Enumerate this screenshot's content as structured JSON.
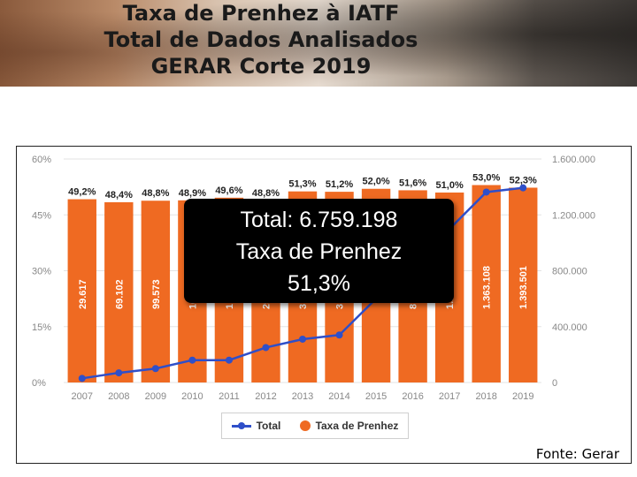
{
  "header": {
    "title_lines": [
      "Taxa de Prenhez à IATF",
      "Total de Dados Analisados",
      "GERAR Corte 2019"
    ]
  },
  "overlay": {
    "line1": "Total: 6.759.198",
    "line2": "Taxa de Prenhez",
    "line3": "51,3%"
  },
  "footer": {
    "source": "Fonte: Gerar"
  },
  "legend": {
    "total_label": "Total",
    "rate_label": "Taxa de Prenhez"
  },
  "colors": {
    "bar": "#ef6a22",
    "line": "#2f4fc9",
    "grid": "#e3e3e3"
  },
  "chart_data": {
    "type": "bar",
    "categories": [
      "2007",
      "2008",
      "2009",
      "2010",
      "2011",
      "2012",
      "2013",
      "2014",
      "2015",
      "2016",
      "2017",
      "2018",
      "2019"
    ],
    "series": [
      {
        "name": "Taxa de Prenhez",
        "type": "bar",
        "axis": "left",
        "values": [
          49.2,
          48.4,
          48.8,
          48.9,
          49.6,
          48.8,
          51.3,
          51.2,
          52.0,
          51.6,
          51.0,
          53.0,
          52.3
        ],
        "labels": [
          "49,2%",
          "48,4%",
          "48,8%",
          "48,9%",
          "49,6%",
          "48,8%",
          "51,3%",
          "51,2%",
          "52,0%",
          "51,6%",
          "51,0%",
          "53,0%",
          "52,3%"
        ]
      },
      {
        "name": "Total",
        "type": "line",
        "axis": "right",
        "values": [
          29617,
          69102,
          99573,
          160000,
          160000,
          250000,
          310000,
          340000,
          600000,
          850000,
          1100000,
          1363108,
          1393501
        ],
        "labels": [
          "29.617",
          "69.102",
          "99.573",
          "16",
          "1",
          "25",
          "3",
          "3",
          "",
          "8",
          "1.1",
          "1.363.108",
          "1.393.501"
        ]
      }
    ],
    "y_left": {
      "ylim": [
        0,
        60
      ],
      "ticks": [
        0,
        15,
        30,
        45,
        60
      ],
      "tick_labels": [
        "0%",
        "15%",
        "30%",
        "45%",
        "60%"
      ]
    },
    "y_right": {
      "ylim": [
        0,
        1600000
      ],
      "ticks": [
        0,
        400000,
        800000,
        1200000,
        1600000
      ],
      "tick_labels": [
        "0",
        "400.000",
        "800.000",
        "1.200.000",
        "1.600.000"
      ]
    },
    "grid": true,
    "legend_position": "bottom"
  }
}
